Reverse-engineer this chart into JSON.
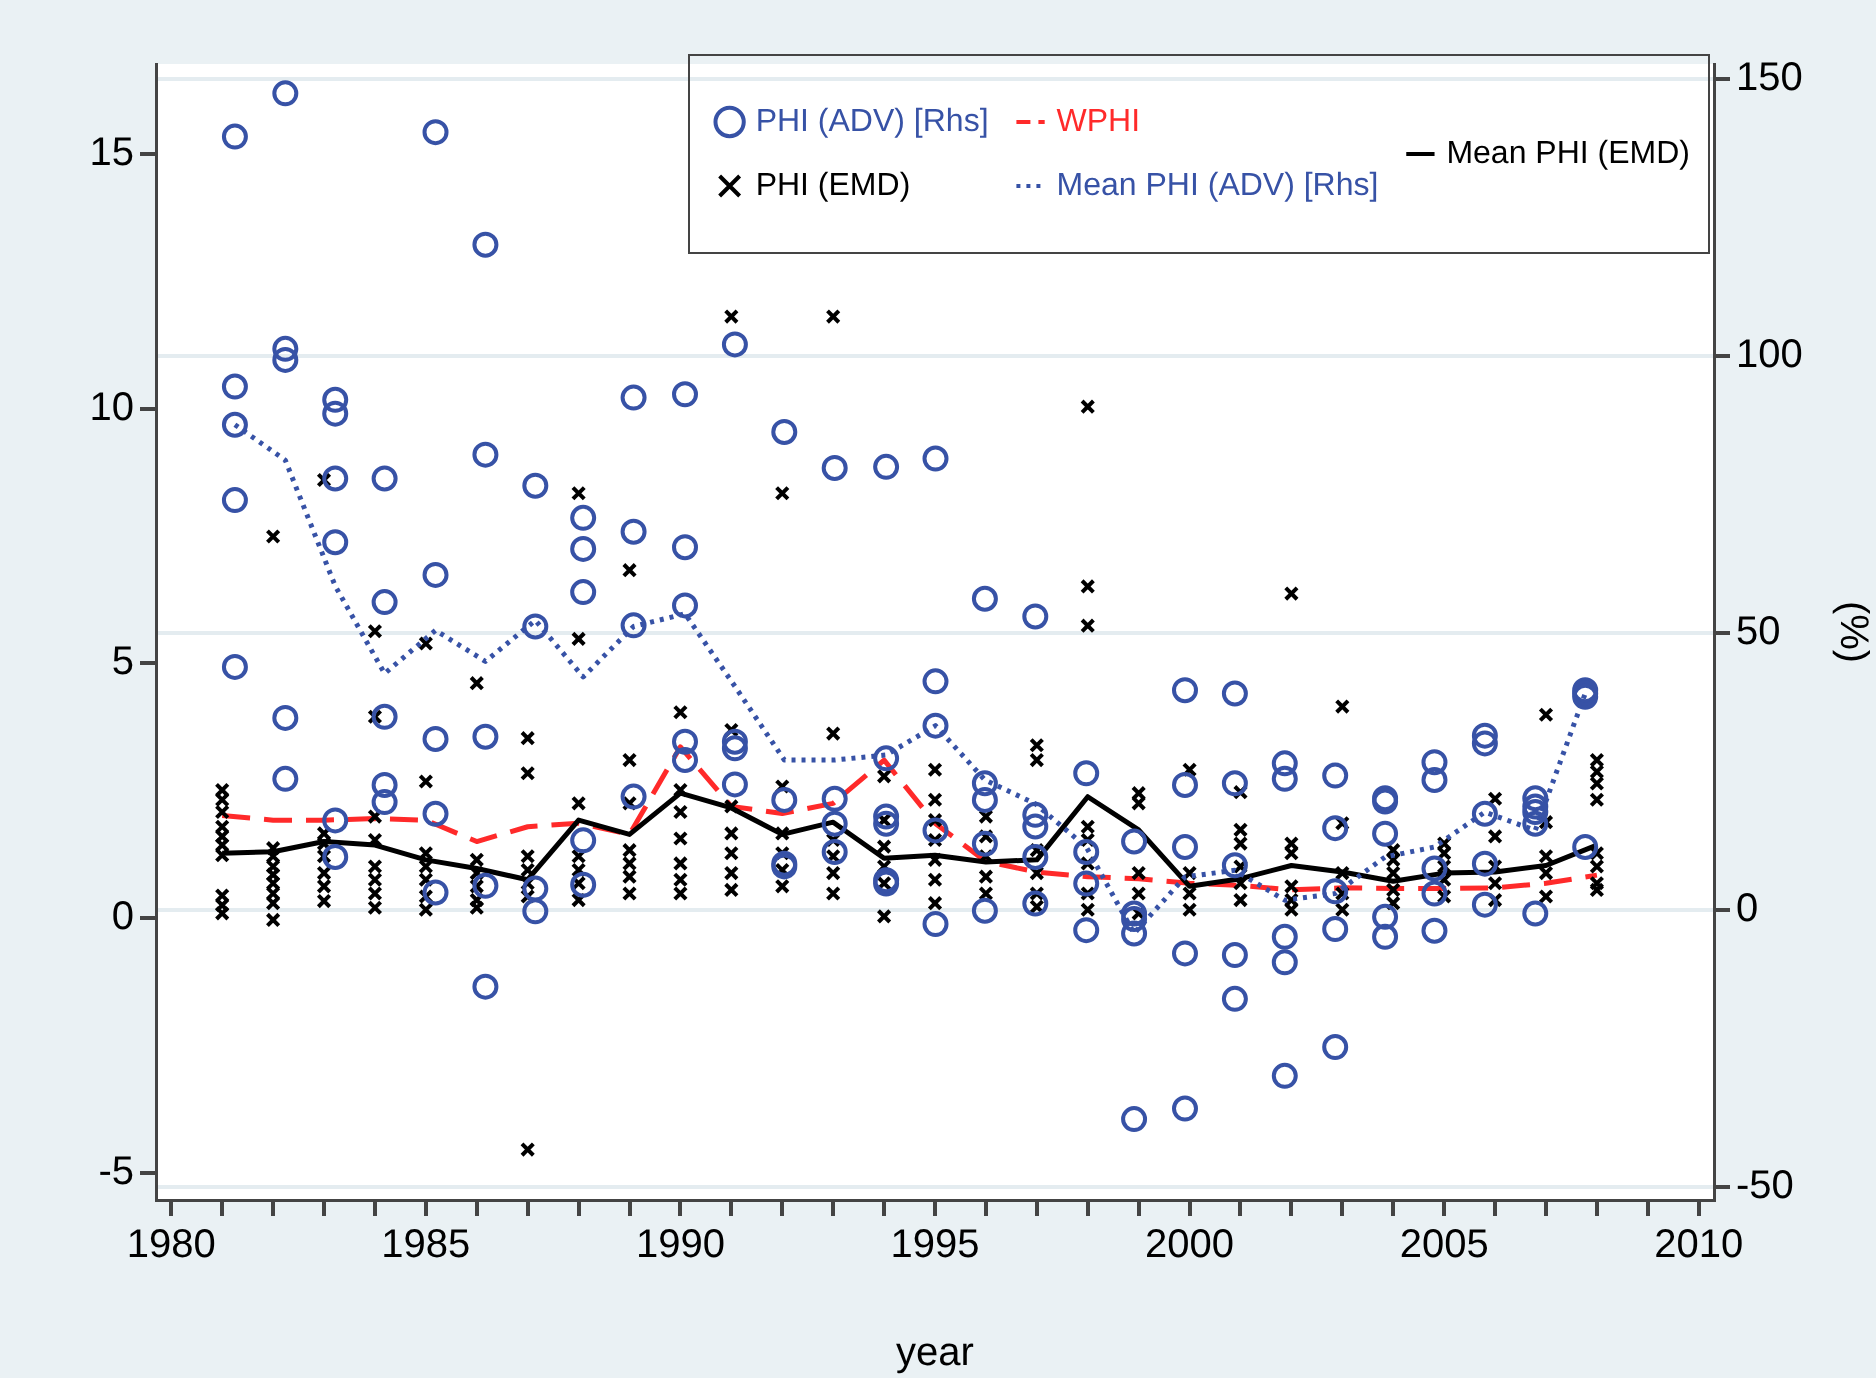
{
  "chart_data": {
    "type": "scatter",
    "xlabel": "year",
    "y2label": "(%)",
    "xlim": [
      1979.7,
      2010.3
    ],
    "ylim": [
      -5.54,
      16.77
    ],
    "y2lim": [
      -52.3,
      152.7
    ],
    "xticks": [
      1980,
      {
        "value": 1981,
        "label": null
      },
      {
        "value": 1982,
        "label": null
      },
      {
        "value": 1983,
        "label": null
      },
      {
        "value": 1984,
        "label": null
      },
      1985,
      {
        "value": 1986,
        "label": null
      },
      {
        "value": 1987,
        "label": null
      },
      {
        "value": 1988,
        "label": null
      },
      {
        "value": 1989,
        "label": null
      },
      1990,
      {
        "value": 1991,
        "label": null
      },
      {
        "value": 1992,
        "label": null
      },
      {
        "value": 1993,
        "label": null
      },
      {
        "value": 1994,
        "label": null
      },
      1995,
      {
        "value": 1996,
        "label": null
      },
      {
        "value": 1997,
        "label": null
      },
      {
        "value": 1998,
        "label": null
      },
      {
        "value": 1999,
        "label": null
      },
      2000,
      {
        "value": 2001,
        "label": null
      },
      {
        "value": 2002,
        "label": null
      },
      {
        "value": 2003,
        "label": null
      },
      {
        "value": 2004,
        "label": null
      },
      2005,
      {
        "value": 2006,
        "label": null
      },
      {
        "value": 2007,
        "label": null
      },
      {
        "value": 2008,
        "label": null
      },
      {
        "value": 2009,
        "label": null
      },
      2010
    ],
    "yticks": [
      -5,
      0,
      5,
      10,
      15
    ],
    "y2ticks": [
      -50,
      0,
      50,
      100,
      150
    ],
    "grid": "y2",
    "legend": "top right",
    "series": [
      {
        "name": "PHI (ADV) [Rhs]",
        "type": "scatter",
        "axis": "y2",
        "marker": "circle",
        "color": "#3752a6",
        "x": [
          1981.25,
          1981.25,
          1981.25,
          1981.25,
          1981.25,
          1982.24,
          1982.24,
          1982.24,
          1982.24,
          1982.24,
          1983.22,
          1983.22,
          1983.22,
          1983.22,
          1983.22,
          1983.22,
          1984.19,
          1984.19,
          1984.19,
          1984.19,
          1984.19,
          1985.19,
          1985.19,
          1985.19,
          1985.19,
          1985.19,
          1986.17,
          1986.17,
          1986.17,
          1986.17,
          1986.17,
          1987.15,
          1987.15,
          1987.15,
          1987.15,
          1988.09,
          1988.09,
          1988.09,
          1988.09,
          1988.09,
          1989.08,
          1989.08,
          1989.08,
          1989.08,
          1990.09,
          1990.09,
          1990.09,
          1990.09,
          1990.09,
          1991.07,
          1991.07,
          1991.07,
          1991.07,
          1992.04,
          1992.04,
          1992.04,
          1992.04,
          1993.03,
          1993.03,
          1993.03,
          1993.03,
          1994.04,
          1994.04,
          1994.04,
          1994.04,
          1994.04,
          1994.04,
          1995.01,
          1995.01,
          1995.01,
          1995.01,
          1995.01,
          1995.98,
          1995.98,
          1995.98,
          1995.98,
          1995.98,
          1996.97,
          1996.97,
          1996.97,
          1996.97,
          1996.97,
          1997.97,
          1997.97,
          1997.97,
          1997.97,
          1998.91,
          1998.91,
          1998.91,
          1998.91,
          1998.91,
          1999.91,
          1999.91,
          1999.91,
          1999.91,
          1999.91,
          2000.89,
          2000.89,
          2000.89,
          2000.89,
          2000.89,
          2001.87,
          2001.87,
          2001.87,
          2001.87,
          2001.87,
          2002.86,
          2002.86,
          2002.86,
          2002.86,
          2002.86,
          2003.84,
          2003.84,
          2003.84,
          2003.84,
          2003.84,
          2004.81,
          2004.81,
          2004.81,
          2004.81,
          2004.81,
          2005.8,
          2005.8,
          2005.8,
          2005.8,
          2005.8,
          2006.79,
          2006.79,
          2006.79,
          2006.79,
          2006.79,
          2007.77,
          2007.77,
          2007.77,
          2007.77
        ],
        "values": [
          139.6,
          94.5,
          87.6,
          74.0,
          43.9,
          147.4,
          101.3,
          99.3,
          34.7,
          23.7,
          92.1,
          89.6,
          77.9,
          66.4,
          16.2,
          9.6,
          77.9,
          55.6,
          34.9,
          22.6,
          19.5,
          140.4,
          60.5,
          30.9,
          17.4,
          3.2,
          120.1,
          82.2,
          31.3,
          4.4,
          -13.8,
          76.6,
          51.2,
          3.9,
          -0.2,
          70.8,
          65.2,
          57.4,
          12.6,
          4.6,
          92.5,
          68.3,
          51.4,
          20.5,
          93.1,
          65.5,
          55.0,
          30.4,
          27.1,
          102.1,
          30.4,
          29.2,
          22.7,
          86.3,
          19.9,
          8.4,
          7.9,
          79.8,
          20.1,
          15.6,
          10.5,
          80.0,
          27.4,
          16.9,
          15.6,
          5.4,
          4.8,
          81.5,
          41.3,
          33.3,
          14.4,
          -2.5,
          56.2,
          22.9,
          19.9,
          12.0,
          -0.1,
          53.0,
          17.2,
          15.1,
          9.6,
          1.2,
          24.7,
          10.5,
          4.8,
          -3.6,
          12.4,
          -0.6,
          -1.6,
          -4.2,
          -37.7,
          39.7,
          22.6,
          11.4,
          -7.8,
          -35.8,
          39.1,
          22.9,
          8.1,
          -8.1,
          -16.0,
          26.5,
          23.7,
          -4.8,
          -9.4,
          -29.9,
          24.3,
          14.8,
          3.4,
          -3.4,
          -24.7,
          20.2,
          19.6,
          13.8,
          -1.2,
          -4.8,
          26.7,
          23.5,
          7.5,
          3.0,
          -3.7,
          31.5,
          30.1,
          17.4,
          8.4,
          1.0,
          20.2,
          18.7,
          17.7,
          15.6,
          -0.6,
          39.7,
          39.1,
          38.5,
          11.4
        ]
      },
      {
        "name": "Mean PHI (ADV) [Rhs]",
        "type": "line",
        "axis": "y2",
        "marker": "none",
        "line_style": "dotted",
        "color": "#3752a6",
        "x": [
          1981.25,
          1982.24,
          1983.22,
          1984.19,
          1985.19,
          1986.17,
          1987.15,
          1988.09,
          1989.08,
          1990.09,
          1991.07,
          1992.04,
          1993.03,
          1994.04,
          1995.01,
          1995.98,
          1996.97,
          1997.97,
          1998.91,
          1999.91,
          2000.89,
          2001.87,
          2002.86,
          2003.84,
          2004.81,
          2005.8,
          2006.79,
          2007.77
        ],
        "values": [
          87.6,
          81.2,
          58.5,
          42.7,
          50.5,
          44.9,
          52.3,
          42.1,
          51.2,
          53.5,
          40.4,
          27.1,
          27.1,
          28.0,
          33.3,
          23.5,
          19.2,
          11.4,
          -4.2,
          6.0,
          7.2,
          1.8,
          3.0,
          9.6,
          11.4,
          17.7,
          14.4,
          39.1
        ]
      },
      {
        "name": "PHI (EMD)",
        "type": "scatter",
        "axis": "y",
        "marker": "cross",
        "color": "#000000",
        "x": [
          1981,
          1981,
          1981,
          1981,
          1981,
          1981,
          1981,
          1981,
          1981,
          1981,
          1982,
          1982,
          1982,
          1982,
          1982,
          1982,
          1982,
          1982,
          1982,
          1983,
          1983,
          1983,
          1983,
          1983,
          1983,
          1983,
          1984,
          1984,
          1984,
          1984,
          1984,
          1984,
          1984,
          1984,
          1985,
          1985,
          1985,
          1985,
          1985,
          1985,
          1985,
          1986,
          1986,
          1986,
          1986,
          1986,
          1986,
          1987,
          1987,
          1987,
          1987,
          1987,
          1987,
          1987,
          1988,
          1988,
          1988,
          1988,
          1988,
          1988,
          1988,
          1989,
          1989,
          1989,
          1989,
          1989,
          1989,
          1989,
          1990,
          1990,
          1990,
          1990,
          1990,
          1990,
          1990,
          1991,
          1991,
          1991,
          1991,
          1991,
          1991,
          1991,
          1992,
          1992,
          1992,
          1992,
          1992,
          1992,
          1993,
          1993,
          1993,
          1993,
          1993,
          1993,
          1994,
          1994,
          1994,
          1994,
          1994,
          1994,
          1995,
          1995,
          1995,
          1995,
          1995,
          1995,
          1995,
          1996,
          1996,
          1996,
          1996,
          1996,
          1997,
          1997,
          1997,
          1997,
          1997,
          1997,
          1998,
          1998,
          1998,
          1998,
          1998,
          1998,
          1998,
          1998,
          1999,
          1999,
          1999,
          1999,
          1999,
          2000,
          2000,
          2000,
          2000,
          2001,
          2001,
          2001,
          2001,
          2001,
          2001,
          2002,
          2002,
          2002,
          2002,
          2002,
          2002,
          2003,
          2003,
          2003,
          2003,
          2003,
          2004,
          2004,
          2004,
          2004,
          2004,
          2005,
          2005,
          2005,
          2005,
          2005,
          2006,
          2006,
          2006,
          2006,
          2006,
          2007,
          2007,
          2007,
          2007,
          2007,
          2008,
          2008,
          2008,
          2008,
          2008,
          2008,
          2008,
          2008
        ],
        "values": [
          2.51,
          2.32,
          2.08,
          1.79,
          1.6,
          1.43,
          1.23,
          0.44,
          0.25,
          0.09,
          7.49,
          1.37,
          1.21,
          1.01,
          0.85,
          0.68,
          0.48,
          0.29,
          -0.04,
          8.6,
          1.66,
          1.46,
          1.21,
          0.88,
          0.62,
          0.33,
          5.63,
          3.95,
          1.99,
          1.53,
          1.01,
          0.75,
          0.48,
          0.2,
          5.39,
          2.68,
          1.27,
          1.01,
          0.75,
          0.42,
          0.16,
          4.61,
          1.14,
          0.88,
          0.62,
          0.35,
          0.2,
          3.53,
          2.84,
          1.21,
          0.94,
          0.68,
          0.42,
          -4.55,
          8.34,
          5.48,
          2.25,
          1.21,
          0.94,
          0.68,
          0.35,
          6.83,
          3.1,
          2.25,
          1.33,
          1.07,
          0.81,
          0.48,
          4.04,
          2.51,
          2.08,
          1.56,
          1.07,
          0.75,
          0.48,
          11.81,
          3.69,
          2.19,
          1.66,
          1.27,
          0.88,
          0.55,
          8.34,
          2.58,
          1.66,
          1.27,
          0.94,
          0.62,
          11.81,
          3.62,
          1.53,
          1.21,
          0.88,
          0.48,
          2.78,
          1.92,
          1.4,
          1.01,
          0.68,
          0.03,
          2.91,
          2.32,
          1.92,
          1.53,
          1.14,
          0.75,
          0.29,
          1.99,
          1.6,
          1.21,
          0.81,
          0.48,
          3.39,
          3.1,
          1.33,
          0.88,
          0.48,
          0.22,
          10.04,
          6.51,
          5.74,
          1.79,
          1.53,
          1.07,
          0.48,
          0.16,
          2.45,
          2.25,
          0.88,
          0.48,
          0.09,
          2.91,
          0.88,
          0.48,
          0.16,
          2.47,
          1.73,
          1.46,
          1.01,
          0.68,
          0.35,
          6.37,
          1.46,
          1.27,
          0.62,
          0.35,
          0.16,
          4.15,
          1.86,
          0.88,
          0.48,
          0.16,
          1.33,
          1.14,
          0.88,
          0.55,
          0.29,
          1.46,
          1.27,
          1.01,
          0.75,
          0.42,
          2.34,
          1.6,
          1.01,
          0.68,
          0.35,
          3.99,
          1.88,
          1.21,
          0.88,
          0.42,
          3.1,
          2.87,
          2.64,
          2.32,
          1.27,
          1.01,
          0.68,
          0.55
        ]
      },
      {
        "name": "Mean PHI (EMD)",
        "type": "line",
        "axis": "y",
        "marker": "none",
        "line_style": "solid",
        "color": "#000000",
        "x": [
          1981,
          1982,
          1983,
          1984,
          1985,
          1986,
          1987,
          1988,
          1989,
          1990,
          1991,
          1992,
          1993,
          1994,
          1995,
          1996,
          1997,
          1998,
          1999,
          2000,
          2001,
          2002,
          2003,
          2004,
          2005,
          2006,
          2007,
          2008
        ],
        "values": [
          1.27,
          1.3,
          1.5,
          1.43,
          1.14,
          0.97,
          0.75,
          1.92,
          1.64,
          2.45,
          2.16,
          1.64,
          1.88,
          1.17,
          1.23,
          1.1,
          1.14,
          2.38,
          1.73,
          0.62,
          0.77,
          1.03,
          0.9,
          0.72,
          0.88,
          0.9,
          1.03,
          1.43
        ]
      },
      {
        "name": "WPHI",
        "type": "line",
        "axis": "y",
        "marker": "none",
        "line_style": "dashed",
        "color": "#ff2a2a",
        "x": [
          1981,
          1982,
          1983,
          1984,
          1985,
          1986,
          1987,
          1988,
          1989,
          1990,
          1991,
          1992,
          1993,
          1994,
          1995,
          1996,
          1997,
          1998,
          1999,
          2000,
          2001,
          2002,
          2003,
          2004,
          2005,
          2006,
          2007,
          2008
        ],
        "values": [
          2.01,
          1.92,
          1.92,
          1.95,
          1.92,
          1.5,
          1.79,
          1.86,
          1.64,
          3.36,
          2.19,
          2.05,
          2.25,
          3.1,
          1.86,
          1.11,
          0.9,
          0.81,
          0.77,
          0.68,
          0.64,
          0.55,
          0.59,
          0.58,
          0.58,
          0.59,
          0.68,
          0.84
        ]
      }
    ]
  }
}
